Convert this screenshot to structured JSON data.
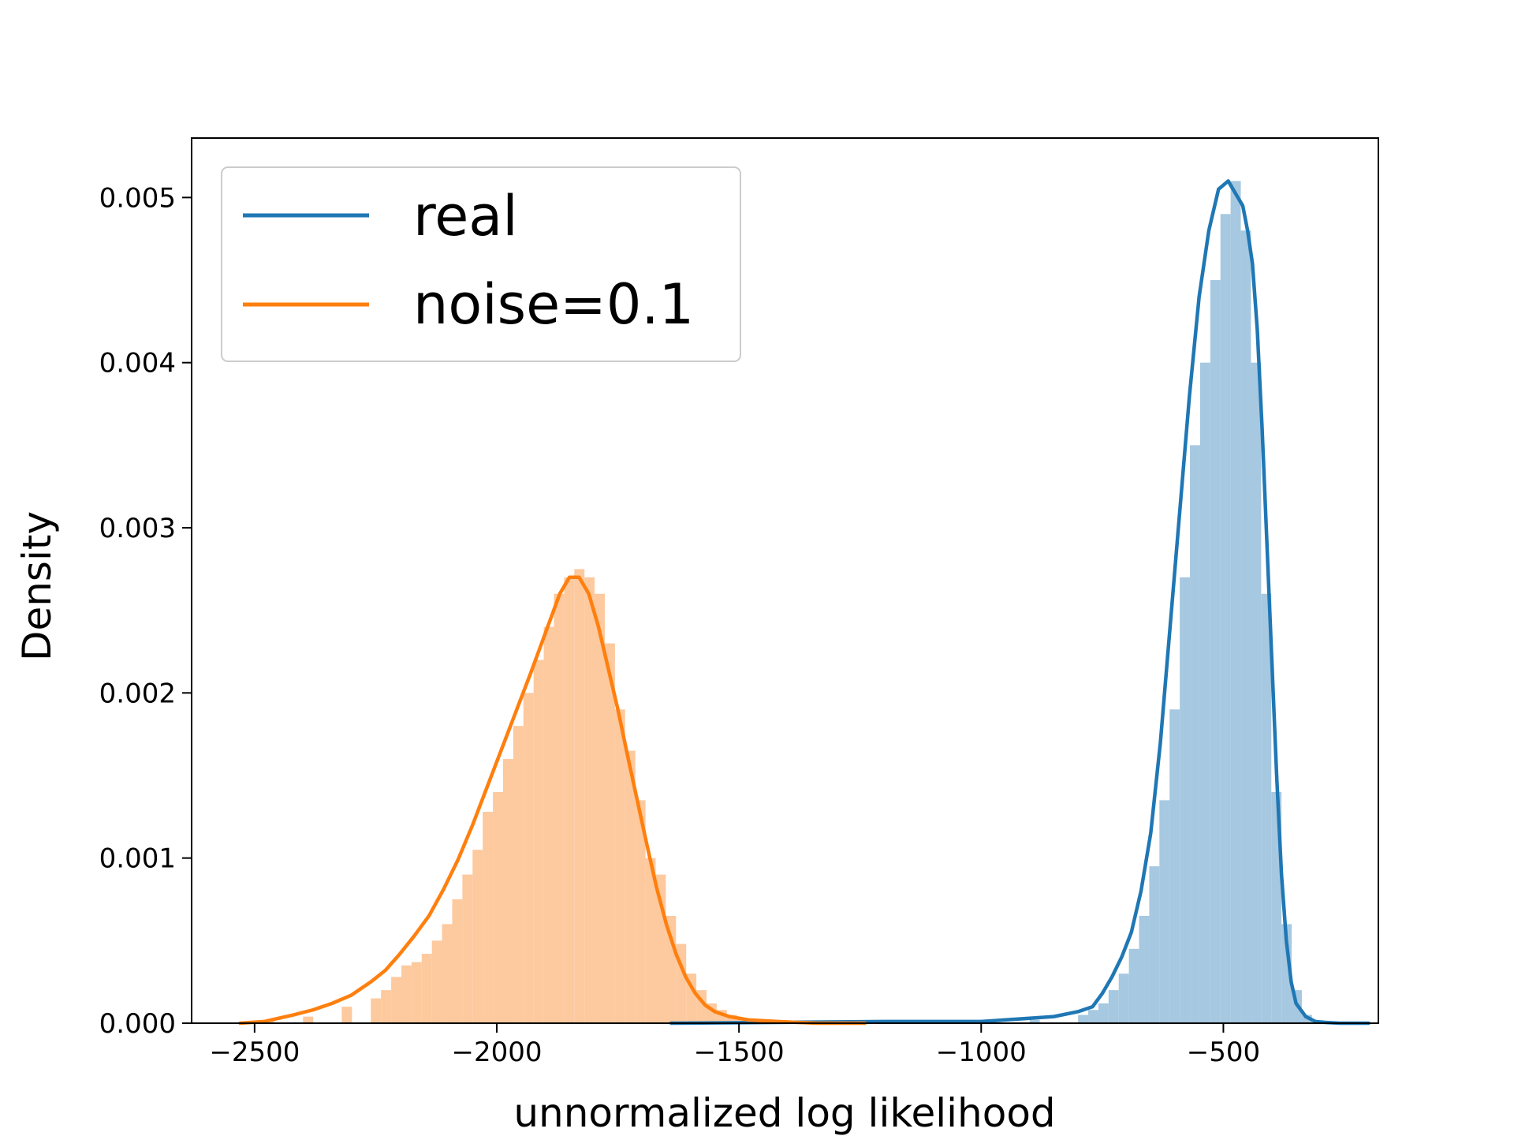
{
  "chart_data": {
    "type": "area",
    "title": "",
    "xlabel": "unnormalized log likelihood",
    "ylabel": "Density",
    "xlim": [
      -2630,
      -180
    ],
    "ylim": [
      0,
      0.00536
    ],
    "xticks": [
      -2500,
      -2000,
      -1500,
      -1000,
      -500
    ],
    "xtick_labels": [
      "−2500",
      "−2000",
      "−1500",
      "−1000",
      "−500"
    ],
    "yticks": [
      0,
      0.001,
      0.002,
      0.003,
      0.004,
      0.005
    ],
    "ytick_labels": [
      "0.000",
      "0.001",
      "0.002",
      "0.003",
      "0.004",
      "0.005"
    ],
    "grid": false,
    "legend_position": "top-left",
    "colors": {
      "real_line": "#1f77b4",
      "real_fill": "#a6c8e0",
      "noise_line": "#ff7f0e",
      "noise_fill": "#fdc99e"
    },
    "series": [
      {
        "name": "real",
        "color": "#1f77b4",
        "histogram": {
          "bin_width": 21,
          "bins": [
            [
              -1220,
              0.0
            ],
            [
              -1000,
              1e-05
            ],
            [
              -900,
              2e-05
            ],
            [
              -800,
              5e-05
            ],
            [
              -779,
              8e-05
            ],
            [
              -758,
              0.00012
            ],
            [
              -737,
              0.0002
            ],
            [
              -716,
              0.0003
            ],
            [
              -695,
              0.00045
            ],
            [
              -674,
              0.00065
            ],
            [
              -653,
              0.00095
            ],
            [
              -632,
              0.00135
            ],
            [
              -611,
              0.0019
            ],
            [
              -590,
              0.0027
            ],
            [
              -569,
              0.0035
            ],
            [
              -548,
              0.004
            ],
            [
              -527,
              0.0045
            ],
            [
              -506,
              0.0049
            ],
            [
              -485,
              0.0051
            ],
            [
              -464,
              0.0048
            ],
            [
              -443,
              0.004
            ],
            [
              -422,
              0.0026
            ],
            [
              -401,
              0.0014
            ],
            [
              -380,
              0.0006
            ],
            [
              -359,
              0.0002
            ],
            [
              -338,
              5e-05
            ]
          ]
        },
        "kde": {
          "x": [
            -1640,
            -1200,
            -1000,
            -900,
            -850,
            -800,
            -770,
            -750,
            -730,
            -710,
            -690,
            -670,
            -650,
            -630,
            -610,
            -590,
            -570,
            -550,
            -530,
            -510,
            -490,
            -470,
            -460,
            -450,
            -440,
            -430,
            -420,
            -410,
            -400,
            -390,
            -380,
            -370,
            -360,
            -350,
            -330,
            -310,
            -290,
            -260,
            -220,
            -200
          ],
          "y": [
            0.0,
            1e-05,
            1e-05,
            3e-05,
            4e-05,
            7e-05,
            0.0001,
            0.00018,
            0.00028,
            0.0004,
            0.00055,
            0.0008,
            0.00115,
            0.0017,
            0.0024,
            0.0031,
            0.0038,
            0.0044,
            0.0048,
            0.00505,
            0.0051,
            0.005,
            0.00495,
            0.0048,
            0.0046,
            0.0042,
            0.0036,
            0.0029,
            0.0022,
            0.0015,
            0.0009,
            0.0005,
            0.00025,
            0.00012,
            4e-05,
            1e-05,
            5e-06,
            0.0,
            0.0,
            0.0
          ]
        }
      },
      {
        "name": "noise=0.1",
        "color": "#ff7f0e",
        "histogram": {
          "bin_width": 21,
          "bins": [
            [
              -2480,
              2e-05
            ],
            [
              -2400,
              4e-05
            ],
            [
              -2320,
              0.0001
            ],
            [
              -2260,
              0.00015
            ],
            [
              -2239,
              0.0002
            ],
            [
              -2218,
              0.00028
            ],
            [
              -2197,
              0.00035
            ],
            [
              -2176,
              0.00037
            ],
            [
              -2155,
              0.00042
            ],
            [
              -2134,
              0.0005
            ],
            [
              -2113,
              0.0006
            ],
            [
              -2092,
              0.00075
            ],
            [
              -2071,
              0.0009
            ],
            [
              -2050,
              0.00105
            ],
            [
              -2029,
              0.00128
            ],
            [
              -2008,
              0.0014
            ],
            [
              -1987,
              0.0016
            ],
            [
              -1966,
              0.0018
            ],
            [
              -1945,
              0.002
            ],
            [
              -1924,
              0.0022
            ],
            [
              -1903,
              0.0024
            ],
            [
              -1882,
              0.0026
            ],
            [
              -1861,
              0.0027
            ],
            [
              -1840,
              0.00275
            ],
            [
              -1819,
              0.0027
            ],
            [
              -1798,
              0.0026
            ],
            [
              -1777,
              0.0023
            ],
            [
              -1756,
              0.0019
            ],
            [
              -1735,
              0.00165
            ],
            [
              -1714,
              0.00135
            ],
            [
              -1693,
              0.001
            ],
            [
              -1672,
              0.0009
            ],
            [
              -1651,
              0.00065
            ],
            [
              -1630,
              0.00048
            ],
            [
              -1609,
              0.0003
            ],
            [
              -1588,
              0.0002
            ],
            [
              -1567,
              0.00012
            ],
            [
              -1546,
              8e-05
            ],
            [
              -1525,
              5e-05
            ],
            [
              -1504,
              3e-05
            ]
          ]
        },
        "kde": {
          "x": [
            -2530,
            -2480,
            -2450,
            -2420,
            -2380,
            -2340,
            -2300,
            -2260,
            -2230,
            -2200,
            -2170,
            -2140,
            -2110,
            -2080,
            -2050,
            -2020,
            -1990,
            -1960,
            -1930,
            -1900,
            -1870,
            -1850,
            -1830,
            -1810,
            -1790,
            -1770,
            -1750,
            -1730,
            -1710,
            -1690,
            -1670,
            -1650,
            -1630,
            -1610,
            -1590,
            -1570,
            -1550,
            -1520,
            -1480,
            -1420,
            -1340,
            -1240
          ],
          "y": [
            0.0,
            1e-05,
            3e-05,
            5e-05,
            8e-05,
            0.00012,
            0.00017,
            0.00025,
            0.00032,
            0.00042,
            0.00053,
            0.00065,
            0.00081,
            0.00099,
            0.0012,
            0.00143,
            0.00166,
            0.00189,
            0.00212,
            0.00236,
            0.0026,
            0.0027,
            0.0027,
            0.0026,
            0.0024,
            0.00215,
            0.0019,
            0.00162,
            0.00135,
            0.00108,
            0.00082,
            0.0006,
            0.00042,
            0.00028,
            0.00018,
            0.00011,
            7e-05,
            4e-05,
            2e-05,
            1e-05,
            0.0,
            0.0
          ]
        }
      }
    ]
  }
}
